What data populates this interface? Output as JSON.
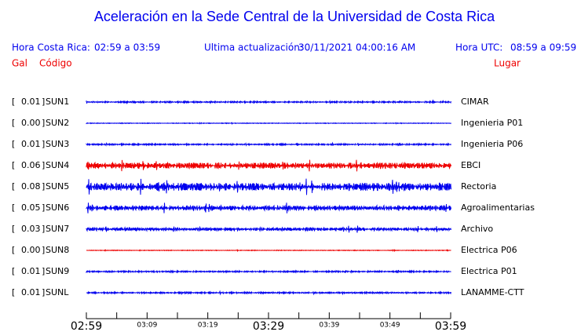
{
  "header": {
    "title": "Aceleración en la Sede Central de la Universidad de Costa Rica",
    "local_label": "Hora Costa Rica:",
    "local_range": "02:59 a 03:59",
    "update_label": "Ultima actualización:",
    "update_value": "30/11/2021 04:00:16 AM",
    "utc_label": "Hora UTC:",
    "utc_range": "08:59 a 09:59",
    "gal_heading": "Gal",
    "code_heading": "Código",
    "place_heading": "Lugar"
  },
  "stations": [
    {
      "gal": "0.01",
      "code": "SUN1",
      "place": "CIMAR",
      "color": "#0000ee"
    },
    {
      "gal": "0.00",
      "code": "SUN2",
      "place": "Ingenieria P01",
      "color": "#0000ee"
    },
    {
      "gal": "0.01",
      "code": "SUN3",
      "place": "Ingenieria P06",
      "color": "#0000ee"
    },
    {
      "gal": "0.06",
      "code": "SUN4",
      "place": "EBCI",
      "color": "#ee0000"
    },
    {
      "gal": "0.08",
      "code": "SUN5",
      "place": "Rectoria",
      "color": "#0000ee"
    },
    {
      "gal": "0.05",
      "code": "SUN6",
      "place": "Agroalimentarias",
      "color": "#0000ee"
    },
    {
      "gal": "0.03",
      "code": "SUN7",
      "place": "Archivo",
      "color": "#0000ee"
    },
    {
      "gal": "0.00",
      "code": "SUN8",
      "place": "Electrica P06",
      "color": "#ee0000"
    },
    {
      "gal": "0.01",
      "code": "SUN9",
      "place": "Electrica P01",
      "color": "#0000ee"
    },
    {
      "gal": "0.01",
      "code": "SUNL",
      "place": "LANAMME-CTT",
      "color": "#0000ee"
    }
  ],
  "time_axis": {
    "labels": [
      {
        "text": "02:59",
        "major": true
      },
      {
        "text": "03:09",
        "major": false
      },
      {
        "text": "03:19",
        "major": false
      },
      {
        "text": "03:29",
        "major": true
      },
      {
        "text": "03:39",
        "major": false
      },
      {
        "text": "03:49",
        "major": false
      },
      {
        "text": "03:59",
        "major": true
      }
    ]
  }
}
